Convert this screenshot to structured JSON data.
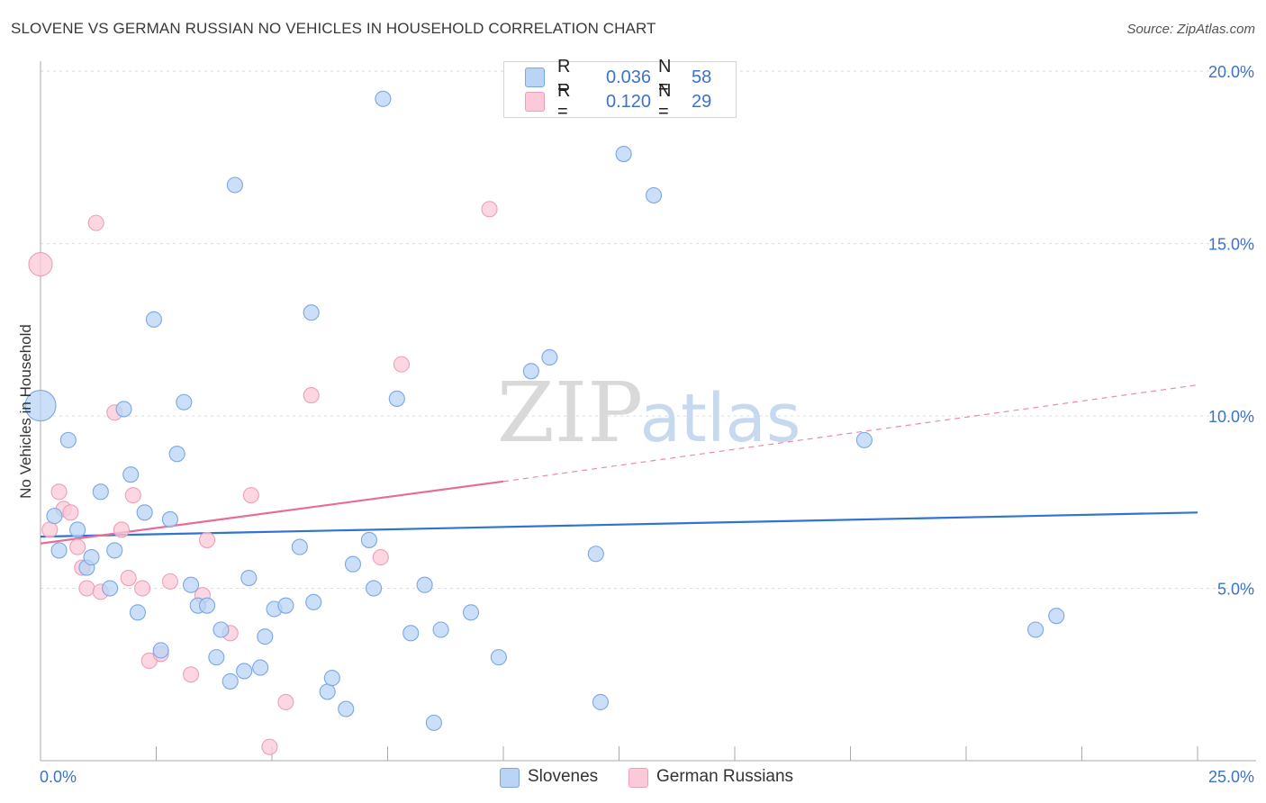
{
  "title": "SLOVENE VS GERMAN RUSSIAN NO VEHICLES IN HOUSEHOLD CORRELATION CHART",
  "source": "Source: ZipAtlas.com",
  "watermark": {
    "zip": "ZIP",
    "atlas": "atlas"
  },
  "legend": {
    "r_label": "R =",
    "n_label": "N =",
    "series": [
      {
        "name": "Slovenes",
        "r": "0.036",
        "n": "58",
        "fill": "#b9d4f5",
        "stroke": "#7aa7e3"
      },
      {
        "name": "German Russians",
        "r": "0.120",
        "n": "29",
        "fill": "#fbc9d8",
        "stroke": "#ee9fb8"
      }
    ]
  },
  "colors": {
    "axis_text": "#3a73c8",
    "blue_line": "#2f74d0",
    "pink_line": "#e66d97",
    "grid": "#dddddd"
  },
  "chart_data": {
    "type": "scatter",
    "title": "SLOVENE VS GERMAN RUSSIAN NO VEHICLES IN HOUSEHOLD CORRELATION CHART",
    "xlabel": "",
    "ylabel": "No Vehicles in Household",
    "xlim": [
      0,
      25
    ],
    "ylim": [
      0,
      20.5
    ],
    "x_tick_labels": [
      {
        "value": 0,
        "label": "0.0%"
      },
      {
        "value": 25,
        "label": "25.0%"
      }
    ],
    "y_tick_labels": [
      {
        "value": 5,
        "label": "5.0%"
      },
      {
        "value": 10,
        "label": "10.0%"
      },
      {
        "value": 15,
        "label": "15.0%"
      },
      {
        "value": 20,
        "label": "20.0%"
      }
    ],
    "series": [
      {
        "name": "Slovenes",
        "points": [
          [
            0.0,
            10.3,
            3
          ],
          [
            0.3,
            7.1,
            1
          ],
          [
            0.4,
            6.1,
            1
          ],
          [
            0.6,
            9.3,
            1
          ],
          [
            0.8,
            6.7,
            1
          ],
          [
            1.0,
            5.6,
            1
          ],
          [
            1.1,
            5.9,
            1
          ],
          [
            1.3,
            7.8,
            1
          ],
          [
            1.5,
            5.0,
            1
          ],
          [
            1.6,
            6.1,
            1
          ],
          [
            1.8,
            10.2,
            1
          ],
          [
            1.95,
            8.3,
            1
          ],
          [
            2.1,
            4.3,
            1
          ],
          [
            2.25,
            7.2,
            1
          ],
          [
            2.45,
            12.8,
            1
          ],
          [
            2.6,
            3.2,
            1
          ],
          [
            2.8,
            7.0,
            1
          ],
          [
            2.95,
            8.9,
            1
          ],
          [
            3.1,
            10.4,
            1
          ],
          [
            3.25,
            5.1,
            1
          ],
          [
            3.4,
            4.5,
            1
          ],
          [
            3.6,
            4.5,
            1
          ],
          [
            3.8,
            3.0,
            1
          ],
          [
            3.9,
            3.8,
            1
          ],
          [
            4.1,
            2.3,
            1
          ],
          [
            4.2,
            16.7,
            1
          ],
          [
            4.4,
            2.6,
            1
          ],
          [
            4.5,
            5.3,
            1
          ],
          [
            4.75,
            2.7,
            1
          ],
          [
            4.85,
            3.6,
            1
          ],
          [
            5.05,
            4.4,
            1
          ],
          [
            5.3,
            4.5,
            1
          ],
          [
            5.6,
            6.2,
            1
          ],
          [
            5.85,
            13.0,
            1
          ],
          [
            5.9,
            4.6,
            1
          ],
          [
            6.2,
            2.0,
            1
          ],
          [
            6.3,
            2.4,
            1
          ],
          [
            6.6,
            1.5,
            1
          ],
          [
            6.75,
            5.7,
            1
          ],
          [
            7.1,
            6.4,
            1
          ],
          [
            7.2,
            5.0,
            1
          ],
          [
            7.4,
            19.2,
            1
          ],
          [
            7.7,
            10.5,
            1
          ],
          [
            8.0,
            3.7,
            1
          ],
          [
            8.3,
            5.1,
            1
          ],
          [
            8.5,
            1.1,
            1
          ],
          [
            8.65,
            3.8,
            1
          ],
          [
            9.3,
            4.3,
            1
          ],
          [
            9.9,
            3.0,
            1
          ],
          [
            10.6,
            11.3,
            1
          ],
          [
            11.0,
            11.7,
            1
          ],
          [
            12.0,
            6.0,
            1
          ],
          [
            12.1,
            1.7,
            1
          ],
          [
            12.6,
            17.6,
            1
          ],
          [
            13.25,
            16.4,
            1
          ],
          [
            17.8,
            9.3,
            1
          ],
          [
            21.5,
            3.8,
            1
          ],
          [
            21.95,
            4.2,
            1
          ]
        ],
        "trend": {
          "x": [
            0,
            25
          ],
          "y": [
            6.5,
            7.2
          ],
          "style": "solid"
        }
      },
      {
        "name": "German Russians",
        "points": [
          [
            0.0,
            14.4,
            2
          ],
          [
            0.2,
            6.7,
            1
          ],
          [
            0.4,
            7.8,
            1
          ],
          [
            0.5,
            7.3,
            1
          ],
          [
            0.65,
            7.2,
            1
          ],
          [
            0.8,
            6.2,
            1
          ],
          [
            0.9,
            5.6,
            1
          ],
          [
            1.0,
            5.0,
            1
          ],
          [
            1.2,
            15.6,
            1
          ],
          [
            1.3,
            4.9,
            1
          ],
          [
            1.6,
            10.1,
            1
          ],
          [
            1.75,
            6.7,
            1
          ],
          [
            1.9,
            5.3,
            1
          ],
          [
            2.0,
            7.7,
            1
          ],
          [
            2.2,
            5.0,
            1
          ],
          [
            2.35,
            2.9,
            1
          ],
          [
            2.6,
            3.1,
            1
          ],
          [
            2.8,
            5.2,
            1
          ],
          [
            3.25,
            2.5,
            1
          ],
          [
            3.5,
            4.8,
            1
          ],
          [
            3.6,
            6.4,
            1
          ],
          [
            4.1,
            3.7,
            1
          ],
          [
            4.55,
            7.7,
            1
          ],
          [
            5.3,
            1.7,
            1
          ],
          [
            4.95,
            0.4,
            1
          ],
          [
            5.85,
            10.6,
            1
          ],
          [
            7.35,
            5.9,
            1
          ],
          [
            7.8,
            11.5,
            1
          ],
          [
            9.7,
            16.0,
            1
          ]
        ],
        "trend_solid": {
          "x": [
            0,
            10.0
          ],
          "y": [
            6.3,
            8.1
          ],
          "style": "solid"
        },
        "trend_dashed": {
          "x": [
            10.0,
            25
          ],
          "y": [
            8.1,
            10.9
          ],
          "style": "dashed"
        }
      }
    ]
  }
}
